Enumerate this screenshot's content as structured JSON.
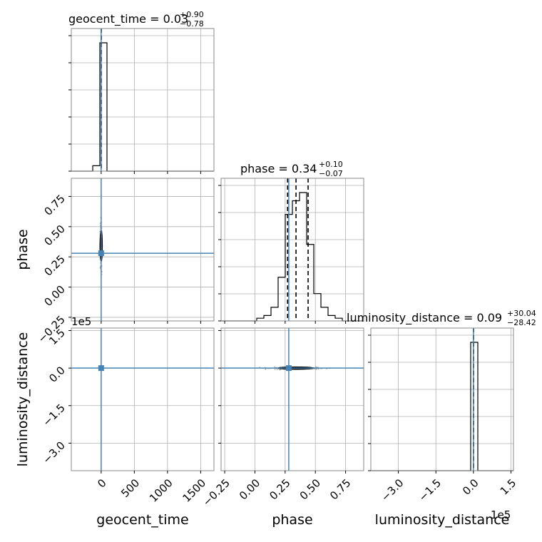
{
  "chart_data": {
    "type": "corner",
    "parameters": [
      "geocent_time",
      "phase",
      "luminosity_distance"
    ],
    "axis_labels": {
      "geocent_time": "geocent_time",
      "phase": "phase",
      "luminosity_distance": "luminosity_distance"
    },
    "titles": {
      "geocent_time": {
        "name": "geocent_time",
        "value": "0.03",
        "plus": "+0.90",
        "minus": "−0.78"
      },
      "phase": {
        "name": "phase",
        "value": "0.34",
        "plus": "+0.10",
        "minus": "−0.07"
      },
      "luminosity_distance": {
        "name": "luminosity_distance",
        "value": "0.09",
        "plus": "+30.04",
        "minus": "−28.42"
      }
    },
    "ranges": {
      "geocent_time": [
        -450,
        1700
      ],
      "phase": [
        -0.28,
        0.9
      ],
      "luminosity_distance": [
        -410000,
        160000
      ]
    },
    "ticks": {
      "geocent_time": {
        "values": [
          0,
          500,
          1000,
          1500
        ],
        "labels": [
          "0",
          "500",
          "1000",
          "1500"
        ]
      },
      "phase": {
        "values": [
          -0.25,
          0.0,
          0.25,
          0.5,
          0.75
        ],
        "labels": [
          "−0.25",
          "0.00",
          "0.25",
          "0.50",
          "0.75"
        ]
      },
      "luminosity_distance": {
        "values": [
          -300000,
          -150000,
          0,
          150000
        ],
        "labels": [
          "−3.0",
          "−1.5",
          "0.0",
          "1.5"
        ],
        "offset_text": "1e5"
      }
    },
    "truth": {
      "geocent_time": 0,
      "phase": 0.28,
      "luminosity_distance": 0
    },
    "quantiles": {
      "geocent_time": [
        -0.75,
        0.03,
        0.93
      ],
      "phase": [
        0.27,
        0.34,
        0.44
      ],
      "luminosity_distance": [
        -28.33,
        0.09,
        30.13
      ]
    },
    "histograms": {
      "geocent_time": {
        "bin_edges": [
          -450,
          -342.5,
          -235,
          -127.5,
          -20,
          87.5,
          195,
          302.5,
          410,
          517.5,
          625,
          732.5,
          840,
          947.5,
          1055,
          1162.5,
          1270,
          1377.5,
          1485,
          1592.5,
          1700
        ],
        "counts": [
          0,
          0,
          0,
          2,
          47,
          0,
          0,
          0,
          0,
          0,
          0,
          0,
          0,
          0,
          0,
          0,
          0,
          0,
          0,
          0
        ]
      },
      "phase": {
        "bin_edges": [
          -0.28,
          -0.221,
          -0.162,
          -0.103,
          -0.044,
          0.015,
          0.074,
          0.133,
          0.192,
          0.251,
          0.31,
          0.369,
          0.428,
          0.487,
          0.546,
          0.605,
          0.664,
          0.723,
          0.782,
          0.841,
          0.9
        ],
        "counts": [
          0,
          0,
          0,
          0,
          0,
          0.5,
          1,
          2.5,
          8,
          19.5,
          22,
          23.5,
          14,
          5,
          2.5,
          1,
          0.5,
          0,
          0,
          0
        ]
      },
      "luminosity_distance": {
        "bin_edges": [
          -410000,
          -381500,
          -353000,
          -324500,
          -296000,
          -267500,
          -239000,
          -210500,
          -182000,
          -153500,
          -125000,
          -96500,
          -68000,
          -39500,
          -11000,
          17500,
          46000,
          74500,
          103000,
          131500,
          160000
        ],
        "counts": [
          0,
          0,
          0,
          0,
          0,
          0,
          0,
          0,
          0,
          0,
          0,
          0,
          0,
          0,
          49,
          0,
          0,
          0,
          0,
          0
        ]
      }
    },
    "scatter": {
      "phase_vs_geocent_time": {
        "center": [
          0,
          0.34
        ],
        "contours_half_width": [
          [
            8,
            0.13
          ],
          [
            4,
            0.06
          ]
        ]
      },
      "luminosity_distance_vs_geocent_time": {
        "center": [
          0,
          0
        ],
        "contours_half_width": [
          [
            8,
            4000
          ],
          [
            4,
            2000
          ]
        ]
      },
      "luminosity_distance_vs_phase": {
        "center": [
          0.34,
          0
        ],
        "contours_half_width": [
          [
            0.15,
            3000
          ],
          [
            0.08,
            1500
          ]
        ]
      }
    },
    "grid": true,
    "colors": {
      "truth": "#4682b4",
      "histogram": "#000000",
      "quantile": "#000000",
      "grid": "#b0b0b0",
      "points": "#999999"
    }
  }
}
